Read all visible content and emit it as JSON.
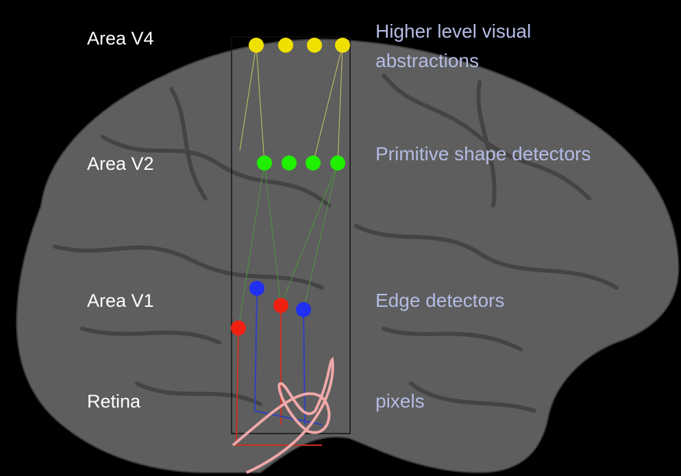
{
  "layers": [
    {
      "area": "Area V4",
      "description": [
        "Higher level visual",
        "abstractions"
      ]
    },
    {
      "area": "Area V2",
      "description": [
        "Primitive shape detectors"
      ]
    },
    {
      "area": "Area V1",
      "description": [
        "Edge detectors"
      ]
    },
    {
      "area": "Retina",
      "description": [
        "pixels"
      ]
    }
  ]
}
